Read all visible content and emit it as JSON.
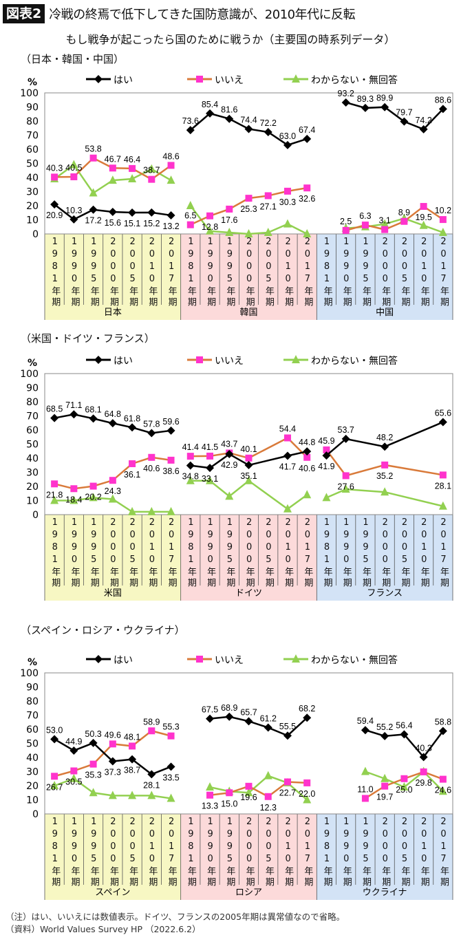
{
  "header": {
    "badge": "図表2",
    "title": "冷戦の終焉で低下してきた国防意識が、2010年代に反転",
    "subtitle": "もし戦争が起こったら国のために戦うか（主要国の時系列データ）"
  },
  "legend": {
    "yes": "はい",
    "no": "いいえ",
    "dk": "わからない・無回答"
  },
  "colors": {
    "yes": "#000000",
    "no_line": "#d97a3a",
    "no_marker": "#ff33cc",
    "dk": "#92d050",
    "band_yellow": "#f7f7c3",
    "band_pink": "#fcdada",
    "band_blue": "#d3e3f6"
  },
  "periods": [
    "1981年期",
    "1990年期",
    "1995年期",
    "2000年期",
    "2005年期",
    "2010年期",
    "2017年期"
  ],
  "chart_data": [
    {
      "type": "line",
      "section_title": "（日本・韓国・中国）",
      "yunit": "%",
      "ylim": [
        0,
        100
      ],
      "yticks": [
        "0",
        "10",
        "20",
        "30",
        "40",
        "50",
        "60",
        "70",
        "80",
        "90",
        "100"
      ],
      "groups": [
        {
          "name": "日本",
          "band": "band_yellow",
          "yes": [
            20.9,
            10.3,
            17.2,
            15.6,
            15.1,
            15.2,
            13.2
          ],
          "no": [
            40.3,
            40.5,
            53.8,
            46.7,
            46.4,
            38.7,
            48.6
          ],
          "dk": [
            39,
            49,
            29,
            38,
            39,
            46,
            38
          ]
        },
        {
          "name": "韓国",
          "band": "band_pink",
          "yes": [
            73.6,
            85.4,
            81.6,
            74.4,
            72.2,
            63.0,
            67.4
          ],
          "no": [
            6.5,
            12.8,
            17.6,
            25.3,
            27.1,
            30.3,
            32.6
          ],
          "dk": [
            20,
            2,
            1,
            0,
            1,
            7,
            0
          ]
        },
        {
          "name": "中国",
          "band": "band_blue",
          "yes": [
            null,
            93.2,
            89.3,
            89.9,
            79.7,
            74.2,
            88.6
          ],
          "no": [
            null,
            2.5,
            6.3,
            3.1,
            8.9,
            19.5,
            10.2
          ],
          "dk": [
            null,
            4,
            5,
            7,
            11,
            6,
            1
          ]
        }
      ]
    },
    {
      "type": "line",
      "section_title": "（米国・ドイツ・フランス）",
      "yunit": "%",
      "ylim": [
        0,
        100
      ],
      "yticks": [
        "0",
        "10",
        "20",
        "30",
        "40",
        "50",
        "60",
        "70",
        "80",
        "90",
        "100"
      ],
      "groups": [
        {
          "name": "米国",
          "band": "band_yellow",
          "yes": [
            68.5,
            71.1,
            68.1,
            64.8,
            61.8,
            57.8,
            59.6
          ],
          "no": [
            21.8,
            18.4,
            20.2,
            24.3,
            36.1,
            40.6,
            38.6
          ],
          "dk": [
            10,
            10,
            12,
            11,
            2,
            2,
            2
          ]
        },
        {
          "name": "ドイツ",
          "band": "band_pink",
          "yes": [
            34.8,
            33.1,
            42.9,
            35.1,
            null,
            41.7,
            44.8
          ],
          "no": [
            41.4,
            41.5,
            43.7,
            40.1,
            null,
            54.4,
            40.6
          ],
          "dk": [
            24,
            24,
            13,
            24,
            null,
            4,
            14
          ]
        },
        {
          "name": "フランス",
          "band": "band_blue",
          "yes": [
            41.9,
            53.7,
            null,
            48.2,
            null,
            null,
            65.6
          ],
          "no": [
            45.9,
            27.6,
            null,
            35.2,
            null,
            null,
            28.1
          ],
          "dk": [
            12,
            18,
            null,
            16,
            null,
            null,
            6
          ]
        }
      ]
    },
    {
      "type": "line",
      "section_title": "（スペイン・ロシア・ウクライナ）",
      "yunit": "%",
      "ylim": [
        0,
        100
      ],
      "yticks": [
        "0",
        "10",
        "20",
        "30",
        "40",
        "50",
        "60",
        "70",
        "80",
        "90",
        "100"
      ],
      "groups": [
        {
          "name": "スペイン",
          "band": "band_yellow",
          "yes": [
            53.0,
            44.9,
            50.3,
            37.3,
            38.7,
            28.1,
            33.5
          ],
          "no": [
            26.7,
            30.5,
            35.3,
            49.6,
            48.1,
            58.9,
            55.3
          ],
          "dk": [
            20,
            25,
            15,
            13,
            13,
            13,
            11
          ]
        },
        {
          "name": "ロシア",
          "band": "band_pink",
          "yes": [
            null,
            67.5,
            68.9,
            65.7,
            61.2,
            55.5,
            68.2
          ],
          "no": [
            null,
            13.3,
            15.0,
            19.6,
            12.3,
            22.7,
            22.0
          ],
          "dk": [
            null,
            19,
            16,
            15,
            27,
            22,
            10
          ]
        },
        {
          "name": "ウクライナ",
          "band": "band_blue",
          "yes": [
            null,
            null,
            59.4,
            55.2,
            56.4,
            40.3,
            58.8
          ],
          "no": [
            null,
            null,
            11.0,
            19.7,
            25.0,
            29.8,
            24.6
          ],
          "dk": [
            null,
            null,
            30,
            25,
            19,
            30,
            16
          ]
        }
      ]
    }
  ],
  "footer": {
    "note": "（注）はい、いいえには数値表示。ドイツ、フランスの2005年期は異常値なので省略。",
    "source": "（資料）World Values Survey HP （2022.6.2）"
  }
}
